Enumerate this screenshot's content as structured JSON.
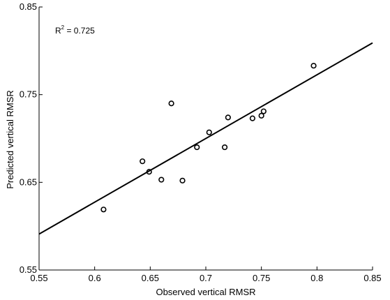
{
  "chart_data": {
    "type": "scatter",
    "xlabel": "Observed vertical RMSR",
    "ylabel": "Predicted vertical RMSR",
    "xlim": [
      0.55,
      0.85
    ],
    "ylim": [
      0.55,
      0.85
    ],
    "x_ticks": [
      0.55,
      0.6,
      0.65,
      0.7,
      0.75,
      0.8,
      0.85
    ],
    "x_tick_labels": [
      "0.55",
      "0.6",
      "0.65",
      "0.7",
      "0.75",
      "0.8",
      "0.85"
    ],
    "y_ticks": [
      0.55,
      0.65,
      0.75,
      0.85
    ],
    "y_tick_labels": [
      "0.55",
      "0.65",
      "0.75",
      "0.85"
    ],
    "grid": false,
    "annotation": {
      "label_main": "R",
      "label_sup": "2",
      "label_rest": " = 0.725"
    },
    "points": [
      {
        "x": 0.608,
        "y": 0.619
      },
      {
        "x": 0.643,
        "y": 0.674
      },
      {
        "x": 0.649,
        "y": 0.662
      },
      {
        "x": 0.66,
        "y": 0.653
      },
      {
        "x": 0.669,
        "y": 0.74
      },
      {
        "x": 0.679,
        "y": 0.652
      },
      {
        "x": 0.692,
        "y": 0.69
      },
      {
        "x": 0.703,
        "y": 0.707
      },
      {
        "x": 0.717,
        "y": 0.69
      },
      {
        "x": 0.72,
        "y": 0.724
      },
      {
        "x": 0.742,
        "y": 0.723
      },
      {
        "x": 0.75,
        "y": 0.726
      },
      {
        "x": 0.752,
        "y": 0.731
      },
      {
        "x": 0.797,
        "y": 0.783
      }
    ],
    "fit_line": {
      "x": [
        0.55,
        0.85
      ],
      "y": [
        0.591,
        0.809
      ]
    },
    "colors": {
      "marker": "#000000",
      "line": "#000000",
      "axis": "#000000"
    }
  }
}
